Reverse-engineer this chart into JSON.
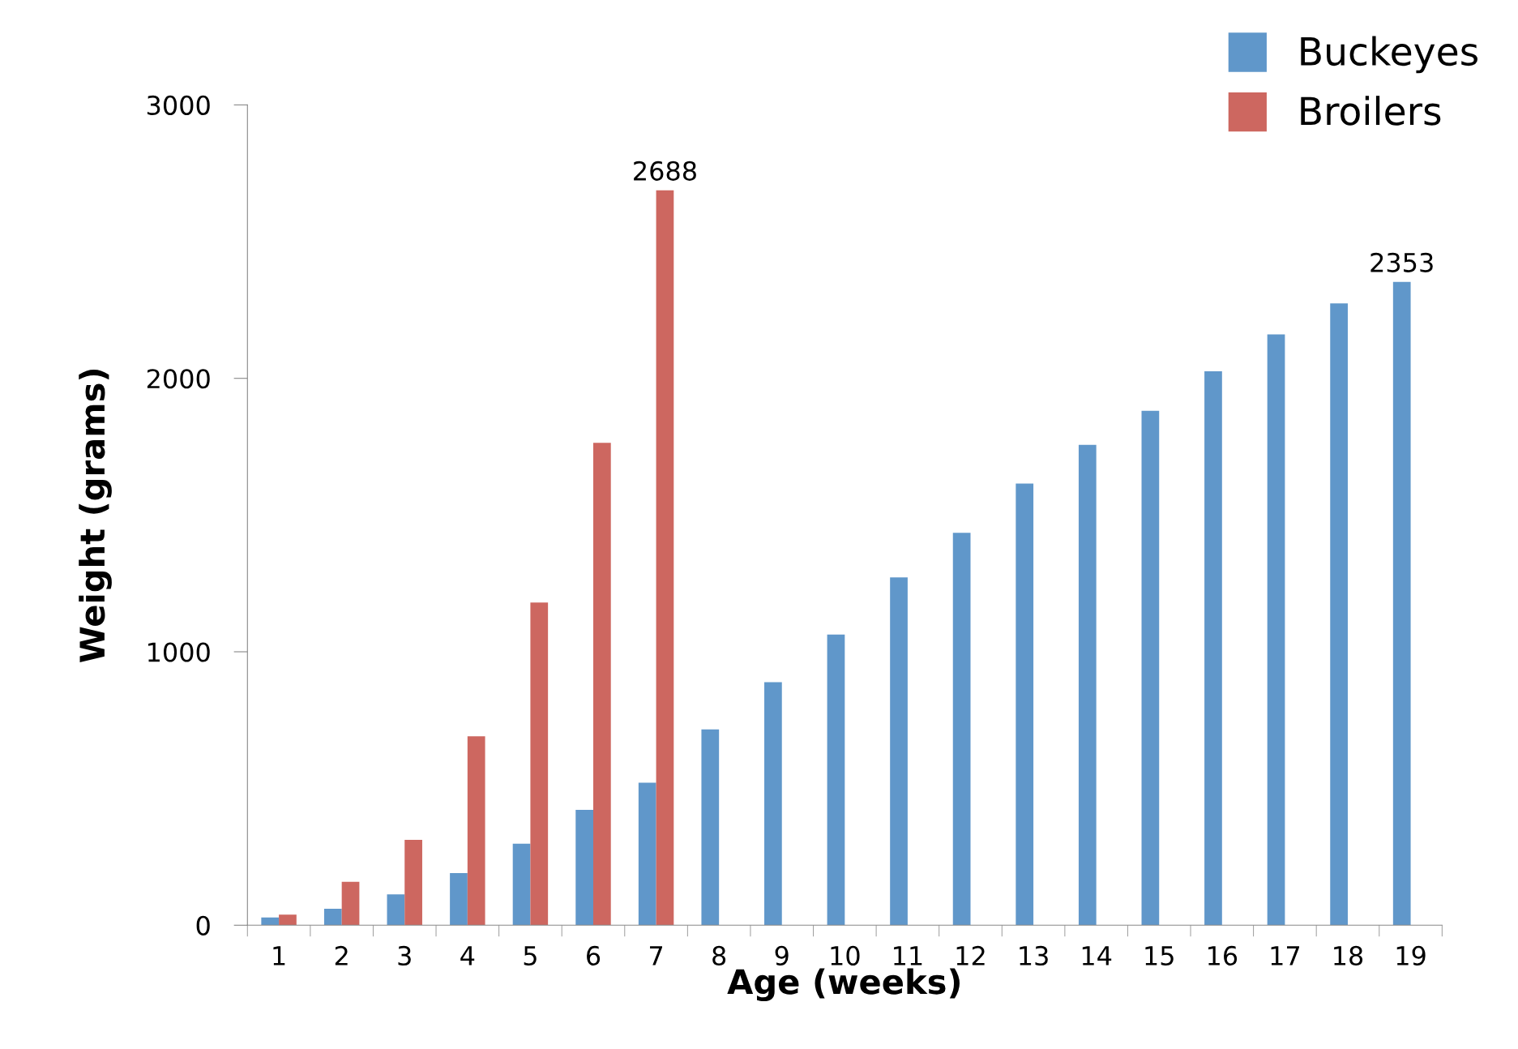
{
  "chart_data": {
    "type": "bar",
    "xlabel": "Age (weeks)",
    "ylabel": "Weight (grams)",
    "categories": [
      "1",
      "2",
      "3",
      "4",
      "5",
      "6",
      "7",
      "8",
      "9",
      "10",
      "11",
      "12",
      "13",
      "14",
      "15",
      "16",
      "17",
      "18",
      "19"
    ],
    "series": [
      {
        "name": "Buckeyes",
        "color": "#6097ca",
        "values": [
          28,
          60,
          113,
          191,
          298,
          422,
          521,
          716,
          889,
          1063,
          1272,
          1435,
          1615,
          1757,
          1881,
          2026,
          2161,
          2274,
          2353
        ],
        "value_labels": [
          null,
          null,
          null,
          null,
          null,
          null,
          null,
          null,
          null,
          null,
          null,
          null,
          null,
          null,
          null,
          null,
          null,
          null,
          "2353"
        ]
      },
      {
        "name": "Broilers",
        "color": "#cd6760",
        "values": [
          39,
          159,
          312,
          691,
          1180,
          1764,
          2688,
          null,
          null,
          null,
          null,
          null,
          null,
          null,
          null,
          null,
          null,
          null,
          null
        ],
        "value_labels": [
          null,
          null,
          null,
          null,
          null,
          null,
          "2688",
          null,
          null,
          null,
          null,
          null,
          null,
          null,
          null,
          null,
          null,
          null,
          null
        ]
      }
    ],
    "ylim": [
      0,
      3000
    ],
    "yticks": [
      0,
      1000,
      2000,
      3000
    ],
    "grid": false,
    "legend": "top right"
  }
}
